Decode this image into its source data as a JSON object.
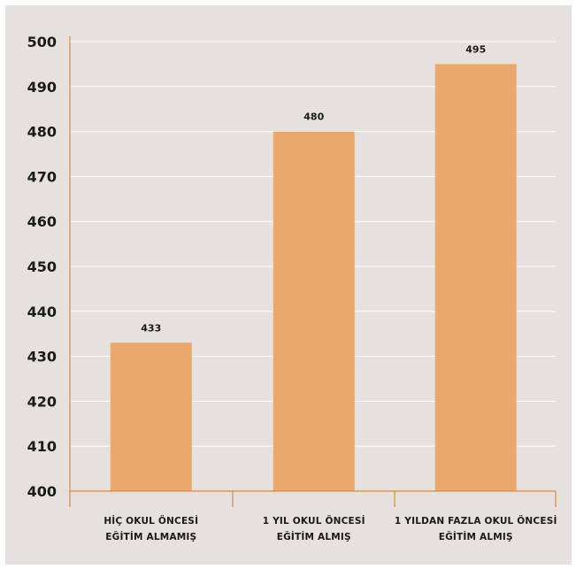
{
  "colors": {
    "panel_background": "#e6e1de",
    "bar": "#eba86c",
    "axis": "#d98c3f",
    "grid": "#ffffff",
    "text": "#1a1a1a"
  },
  "chart_data": {
    "type": "bar",
    "categories": [
      [
        "HİÇ OKUL ÖNCESİ",
        "EĞİTİM ALMAMIŞ"
      ],
      [
        "1 YIL OKUL ÖNCESİ",
        "EĞİTİM ALMIŞ"
      ],
      [
        "1 YILDAN FAZLA OKUL ÖNCESİ",
        "EĞİTİM ALMIŞ"
      ]
    ],
    "values": [
      433,
      480,
      495
    ],
    "data_labels": [
      "433",
      "480",
      "495"
    ],
    "ylim": [
      400,
      500
    ],
    "yticks": [
      400,
      410,
      420,
      430,
      440,
      450,
      460,
      470,
      480,
      490,
      500
    ],
    "ytick_labels": [
      "400",
      "410",
      "420",
      "430",
      "440",
      "450",
      "460",
      "470",
      "480",
      "490",
      "500"
    ],
    "grid": true,
    "title": "",
    "xlabel": "",
    "ylabel": ""
  }
}
